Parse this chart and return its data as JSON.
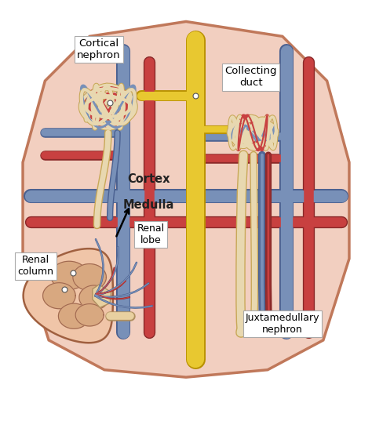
{
  "background_color": "#f2cfc0",
  "kidney_border_color": "#c0785a",
  "red_vessel_color": "#c84040",
  "red_vessel_dark": "#8a2828",
  "blue_vessel_color": "#7890b8",
  "blue_vessel_dark": "#4a6090",
  "yellow_duct_color": "#e8c830",
  "yellow_duct_dark": "#b89000",
  "tubule_color": "#e8d8b0",
  "tubule_border_color": "#c8a858",
  "white_color": "#ffffff",
  "figsize": [
    4.74,
    5.37
  ],
  "dpi": 100,
  "labels": {
    "cortical_nephron": "Cortical\nnephron",
    "collecting_duct": "Collecting\nduct",
    "cortex": "Cortex",
    "medulla": "Medulla",
    "renal_lobe": "Renal\nlobe",
    "renal_column": "Renal\ncolumn",
    "juxtamedullary": "Juxtamedullary\nnephron"
  }
}
